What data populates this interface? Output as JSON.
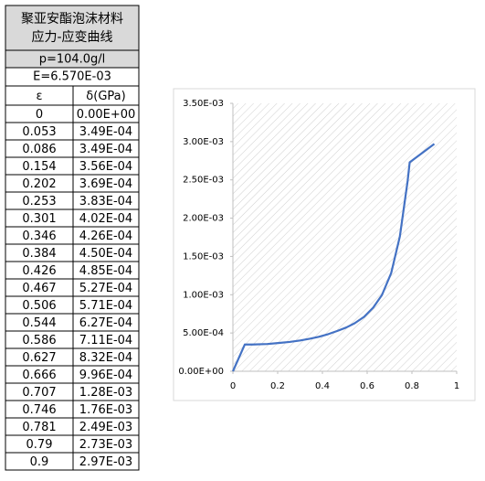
{
  "table": {
    "title": [
      "聚亚安酯泡沫材料",
      "应力-应变曲线"
    ],
    "density": "p=104.0g/l",
    "modulus": "E=6.570E-03",
    "columns": [
      "ε",
      "δ(GPa)"
    ],
    "rows": [
      [
        "0",
        "0.00E+00"
      ],
      [
        "0.053",
        "3.49E-04"
      ],
      [
        "0.086",
        "3.49E-04"
      ],
      [
        "0.154",
        "3.56E-04"
      ],
      [
        "0.202",
        "3.69E-04"
      ],
      [
        "0.253",
        "3.83E-04"
      ],
      [
        "0.301",
        "4.02E-04"
      ],
      [
        "0.346",
        "4.26E-04"
      ],
      [
        "0.384",
        "4.50E-04"
      ],
      [
        "0.426",
        "4.85E-04"
      ],
      [
        "0.467",
        "5.27E-04"
      ],
      [
        "0.506",
        "5.71E-04"
      ],
      [
        "0.544",
        "6.27E-04"
      ],
      [
        "0.586",
        "7.11E-04"
      ],
      [
        "0.627",
        "8.32E-04"
      ],
      [
        "0.666",
        "9.96E-04"
      ],
      [
        "0.707",
        "1.28E-03"
      ],
      [
        "0.746",
        "1.76E-03"
      ],
      [
        "0.781",
        "2.49E-03"
      ],
      [
        "0.79",
        "2.73E-03"
      ],
      [
        "0.9",
        "2.97E-03"
      ]
    ]
  },
  "chart_data": {
    "type": "line",
    "x": [
      0,
      0.053,
      0.086,
      0.154,
      0.202,
      0.253,
      0.301,
      0.346,
      0.384,
      0.426,
      0.467,
      0.506,
      0.544,
      0.586,
      0.627,
      0.666,
      0.707,
      0.746,
      0.781,
      0.79,
      0.9
    ],
    "series": [
      {
        "color": "#4472c4",
        "values": [
          0,
          0.000349,
          0.000349,
          0.000356,
          0.000369,
          0.000383,
          0.000402,
          0.000426,
          0.00045,
          0.000485,
          0.000527,
          0.000571,
          0.000627,
          0.000711,
          0.000832,
          0.000996,
          0.00128,
          0.00176,
          0.00249,
          0.00273,
          0.00297
        ]
      }
    ],
    "xlim": [
      0,
      1
    ],
    "xticks": [
      0,
      0.2,
      0.4,
      0.6,
      0.8,
      1
    ],
    "ylim": [
      0,
      0.0035
    ],
    "yticks": [
      {
        "value": 0,
        "label": "0.00E+00"
      },
      {
        "value": 0.0005,
        "label": "5.00E-04"
      },
      {
        "value": 0.001,
        "label": "1.00E-03"
      },
      {
        "value": 0.0015,
        "label": "1.50E-03"
      },
      {
        "value": 0.002,
        "label": "2.00E-03"
      },
      {
        "value": 0.0025,
        "label": "2.50E-03"
      },
      {
        "value": 0.003,
        "label": "3.00E-03"
      },
      {
        "value": 0.0035,
        "label": "3.50E-03"
      }
    ]
  }
}
